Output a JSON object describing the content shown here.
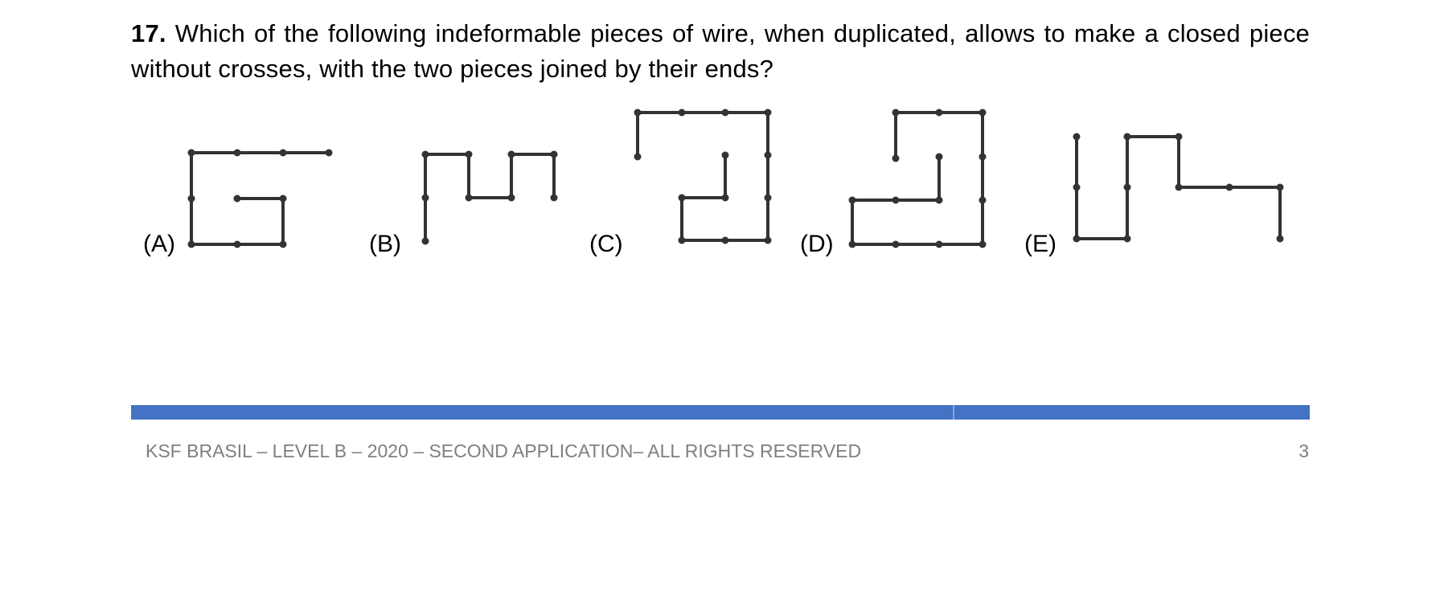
{
  "question": {
    "number": "17.",
    "text": "Which of the following indeformable pieces of wire, when duplicated, allows to make a closed piece without crosses, with the two pieces joined by their ends?"
  },
  "options": [
    {
      "label": "(A)",
      "icon": "wire-shape-a"
    },
    {
      "label": "(B)",
      "icon": "wire-shape-b"
    },
    {
      "label": "(C)",
      "icon": "wire-shape-c"
    },
    {
      "label": "(D)",
      "icon": "wire-shape-d"
    },
    {
      "label": "(E)",
      "icon": "wire-shape-e"
    }
  ],
  "colors": {
    "footer_bar": "#4472c4",
    "footer_text": "#7f7f7f",
    "wire": "#333333"
  },
  "footer": {
    "text": "KSF BRASIL – LEVEL B – 2020 – SECOND APPLICATION– ALL RIGHTS RESERVED",
    "page_number": "3"
  }
}
